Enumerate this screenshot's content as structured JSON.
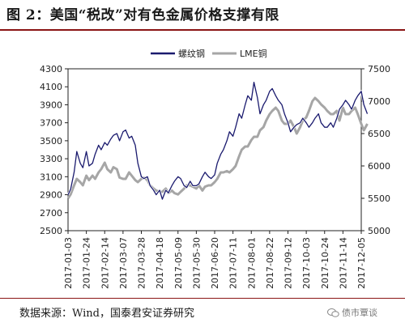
{
  "header": {
    "title": "图 2：美国“税改”对有色金属价格支撑有限"
  },
  "footer": {
    "source": "数据来源：Wind，国泰君安证券研究",
    "watermark": "债市覃谈",
    "watermark_icon": "wechat-icon"
  },
  "colors": {
    "series_primary": "#1a1a6e",
    "series_secondary": "#a6a6a6",
    "rule": "#8a1414"
  },
  "chart_data": {
    "type": "line",
    "title": "",
    "legend_position": "top",
    "grid": false,
    "xlabel": "",
    "ylabel_left": "",
    "ylabel_right": "",
    "x_tick_labels": [
      "2017-01-03",
      "2017-01-24",
      "2017-02-14",
      "2017-03-07",
      "2017-03-28",
      "2017-04-18",
      "2017-05-09",
      "2017-05-30",
      "2017-06-20",
      "2017-07-11",
      "2017-08-01",
      "2017-08-22",
      "2017-09-12",
      "2017-10-03",
      "2017-10-24",
      "2017-11-14",
      "2017-12-05"
    ],
    "y_left": {
      "min": 2500,
      "max": 4300,
      "ticks": [
        2500,
        2700,
        2900,
        3100,
        3300,
        3500,
        3700,
        3900,
        4100,
        4300
      ]
    },
    "y_right": {
      "min": 5000,
      "max": 7500,
      "ticks": [
        5000,
        5500,
        6000,
        6500,
        7000,
        7500
      ]
    },
    "series": [
      {
        "name": "螺纹钢",
        "axis": "left",
        "x": [
          "2017-01-03",
          "2017-01-06",
          "2017-01-10",
          "2017-01-13",
          "2017-01-17",
          "2017-01-20",
          "2017-01-24",
          "2017-01-27",
          "2017-01-31",
          "2017-02-03",
          "2017-02-07",
          "2017-02-10",
          "2017-02-14",
          "2017-02-17",
          "2017-02-21",
          "2017-02-24",
          "2017-02-28",
          "2017-03-03",
          "2017-03-07",
          "2017-03-10",
          "2017-03-14",
          "2017-03-17",
          "2017-03-21",
          "2017-03-24",
          "2017-03-28",
          "2017-03-31",
          "2017-04-04",
          "2017-04-07",
          "2017-04-11",
          "2017-04-14",
          "2017-04-18",
          "2017-04-21",
          "2017-04-25",
          "2017-04-28",
          "2017-05-02",
          "2017-05-05",
          "2017-05-09",
          "2017-05-12",
          "2017-05-16",
          "2017-05-19",
          "2017-05-23",
          "2017-05-26",
          "2017-05-30",
          "2017-06-02",
          "2017-06-06",
          "2017-06-09",
          "2017-06-13",
          "2017-06-16",
          "2017-06-20",
          "2017-06-23",
          "2017-06-27",
          "2017-06-30",
          "2017-07-04",
          "2017-07-07",
          "2017-07-11",
          "2017-07-14",
          "2017-07-18",
          "2017-07-21",
          "2017-07-25",
          "2017-07-28",
          "2017-08-01",
          "2017-08-04",
          "2017-08-08",
          "2017-08-11",
          "2017-08-15",
          "2017-08-18",
          "2017-08-22",
          "2017-08-25",
          "2017-08-29",
          "2017-09-01",
          "2017-09-05",
          "2017-09-08",
          "2017-09-12",
          "2017-09-15",
          "2017-09-19",
          "2017-09-22",
          "2017-09-26",
          "2017-09-29",
          "2017-10-03",
          "2017-10-06",
          "2017-10-10",
          "2017-10-13",
          "2017-10-17",
          "2017-10-20",
          "2017-10-24",
          "2017-10-27",
          "2017-10-31",
          "2017-11-03",
          "2017-11-07",
          "2017-11-10",
          "2017-11-14",
          "2017-11-17",
          "2017-11-21",
          "2017-11-24",
          "2017-11-28",
          "2017-12-01",
          "2017-12-05",
          "2017-12-08",
          "2017-12-12"
        ],
        "values": [
          2900,
          2960,
          3150,
          3380,
          3250,
          3200,
          3380,
          3220,
          3250,
          3350,
          3450,
          3400,
          3480,
          3450,
          3520,
          3560,
          3580,
          3500,
          3600,
          3620,
          3530,
          3550,
          3450,
          3250,
          3100,
          3080,
          3100,
          3000,
          2950,
          2900,
          2950,
          2850,
          2950,
          2920,
          3000,
          3050,
          3100,
          3080,
          3000,
          2980,
          3050,
          3000,
          3000,
          3020,
          3100,
          3150,
          3100,
          3080,
          3120,
          3250,
          3350,
          3400,
          3500,
          3600,
          3550,
          3650,
          3800,
          3750,
          3900,
          4000,
          3950,
          4150,
          3980,
          3800,
          3900,
          3950,
          4050,
          4080,
          4000,
          3950,
          3900,
          3800,
          3700,
          3600,
          3650,
          3680,
          3700,
          3750,
          3700,
          3650,
          3700,
          3750,
          3800,
          3700,
          3650,
          3650,
          3700,
          3650,
          3750,
          3850,
          3900,
          3950,
          3900,
          3850,
          3950,
          4000,
          4050,
          3900,
          3800
        ]
      },
      {
        "name": "LME铜",
        "axis": "right",
        "x": [
          "2017-01-03",
          "2017-01-06",
          "2017-01-10",
          "2017-01-13",
          "2017-01-17",
          "2017-01-20",
          "2017-01-24",
          "2017-01-27",
          "2017-01-31",
          "2017-02-03",
          "2017-02-07",
          "2017-02-10",
          "2017-02-14",
          "2017-02-17",
          "2017-02-21",
          "2017-02-24",
          "2017-02-28",
          "2017-03-03",
          "2017-03-07",
          "2017-03-10",
          "2017-03-14",
          "2017-03-17",
          "2017-03-21",
          "2017-03-24",
          "2017-03-28",
          "2017-03-31",
          "2017-04-04",
          "2017-04-07",
          "2017-04-11",
          "2017-04-14",
          "2017-04-18",
          "2017-04-21",
          "2017-04-25",
          "2017-04-28",
          "2017-05-02",
          "2017-05-05",
          "2017-05-09",
          "2017-05-12",
          "2017-05-16",
          "2017-05-19",
          "2017-05-23",
          "2017-05-26",
          "2017-05-30",
          "2017-06-02",
          "2017-06-06",
          "2017-06-09",
          "2017-06-13",
          "2017-06-16",
          "2017-06-20",
          "2017-06-23",
          "2017-06-27",
          "2017-06-30",
          "2017-07-04",
          "2017-07-07",
          "2017-07-11",
          "2017-07-14",
          "2017-07-18",
          "2017-07-21",
          "2017-07-25",
          "2017-07-28",
          "2017-08-01",
          "2017-08-04",
          "2017-08-08",
          "2017-08-11",
          "2017-08-15",
          "2017-08-18",
          "2017-08-22",
          "2017-08-25",
          "2017-08-29",
          "2017-09-01",
          "2017-09-05",
          "2017-09-08",
          "2017-09-12",
          "2017-09-15",
          "2017-09-19",
          "2017-09-22",
          "2017-09-26",
          "2017-09-29",
          "2017-10-03",
          "2017-10-06",
          "2017-10-10",
          "2017-10-13",
          "2017-10-17",
          "2017-10-20",
          "2017-10-24",
          "2017-10-27",
          "2017-10-31",
          "2017-11-03",
          "2017-11-07",
          "2017-11-10",
          "2017-11-14",
          "2017-11-17",
          "2017-11-21",
          "2017-11-24",
          "2017-11-28",
          "2017-12-01",
          "2017-12-05",
          "2017-12-08",
          "2017-12-12"
        ],
        "values": [
          5500,
          5560,
          5700,
          5800,
          5750,
          5700,
          5850,
          5780,
          5850,
          5800,
          5900,
          5950,
          6050,
          5950,
          5900,
          5980,
          5950,
          5820,
          5800,
          5800,
          5900,
          5850,
          5780,
          5750,
          5800,
          5820,
          5780,
          5700,
          5650,
          5620,
          5600,
          5600,
          5650,
          5580,
          5620,
          5580,
          5560,
          5600,
          5650,
          5700,
          5700,
          5680,
          5650,
          5700,
          5620,
          5680,
          5700,
          5700,
          5750,
          5800,
          5900,
          5900,
          5920,
          5900,
          5950,
          6000,
          6150,
          6250,
          6300,
          6300,
          6400,
          6450,
          6450,
          6550,
          6600,
          6700,
          6800,
          6850,
          6900,
          6850,
          6700,
          6650,
          6650,
          6700,
          6600,
          6500,
          6600,
          6700,
          6750,
          6850,
          7000,
          7050,
          7000,
          6950,
          6900,
          6850,
          6800,
          6800,
          6850,
          6700,
          6900,
          6800,
          6800,
          6850,
          6900,
          6800,
          6650,
          6550,
          6650
        ]
      }
    ]
  }
}
